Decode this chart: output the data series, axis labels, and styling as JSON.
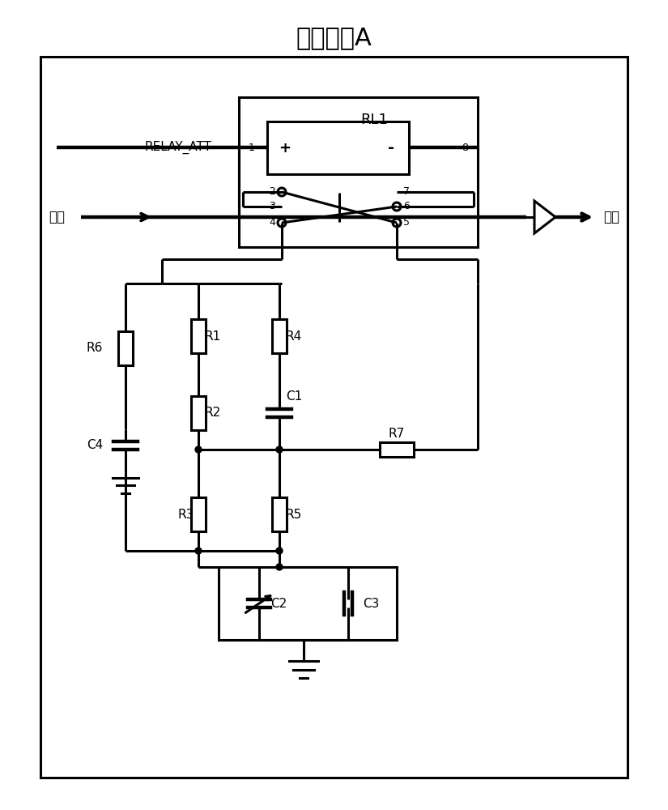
{
  "title": "衰减模块A",
  "title_fontsize": 20,
  "line_color": "#000000",
  "line_width": 2.2,
  "fig_width": 8.25,
  "fig_height": 10.0,
  "labels": {
    "relay_att": "RELAY_ATT",
    "input": "输入",
    "output": "输出",
    "rl1": "RL1",
    "r1": "R1",
    "r2": "R2",
    "r3": "R3",
    "r4": "R4",
    "r5": "R5",
    "r6": "R6",
    "r7": "R7",
    "c1": "C1",
    "c2": "C2",
    "c3": "C3",
    "c4": "C4"
  }
}
